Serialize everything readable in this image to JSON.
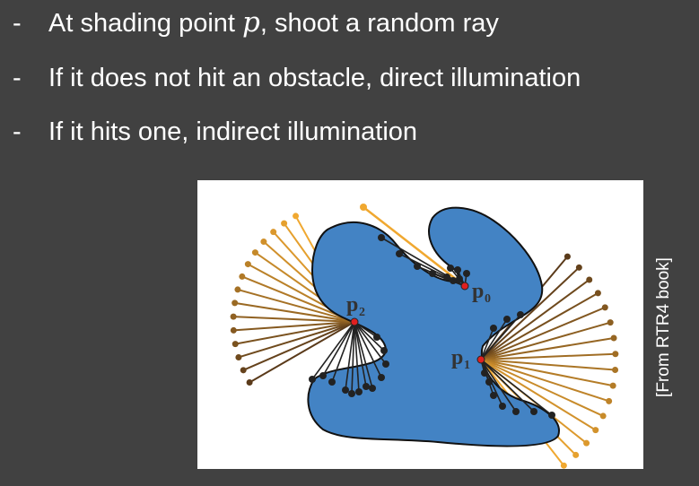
{
  "bullets": [
    {
      "dash": "-",
      "before": "At shading point ",
      "math": "p",
      "after": ", shoot a random ray"
    },
    {
      "dash": "-",
      "text": "If it does not hit an obstacle, direct illumination"
    },
    {
      "dash": "-",
      "text": "If it hits one, indirect illumination"
    }
  ],
  "figure": {
    "points": [
      {
        "label": "p",
        "sub": "0"
      },
      {
        "label": "p",
        "sub": "1"
      },
      {
        "label": "p",
        "sub": "2"
      }
    ],
    "colors": {
      "shape": "#4383c4",
      "outline": "#111111",
      "ray_escape": "#f0a830",
      "ray_blocked": "#222222",
      "point": "#e02020"
    }
  },
  "caption": "[From RTR4 book]"
}
